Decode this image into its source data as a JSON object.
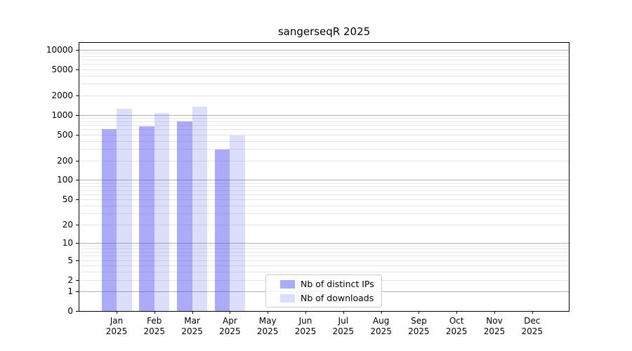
{
  "chart_data": {
    "type": "bar",
    "title": "sangerseqR 2025",
    "categories": [
      {
        "month": "Jan",
        "year": "2025"
      },
      {
        "month": "Feb",
        "year": "2025"
      },
      {
        "month": "Mar",
        "year": "2025"
      },
      {
        "month": "Apr",
        "year": "2025"
      },
      {
        "month": "May",
        "year": "2025"
      },
      {
        "month": "Jun",
        "year": "2025"
      },
      {
        "month": "Jul",
        "year": "2025"
      },
      {
        "month": "Aug",
        "year": "2025"
      },
      {
        "month": "Sep",
        "year": "2025"
      },
      {
        "month": "Oct",
        "year": "2025"
      },
      {
        "month": "Nov",
        "year": "2025"
      },
      {
        "month": "Dec",
        "year": "2025"
      }
    ],
    "series": [
      {
        "name": "Nb of distinct IPs",
        "fill": "rgba(68,68,238,0.45)",
        "solid_equivalent": "#ababf7",
        "values": [
          600,
          660,
          795,
          295,
          null,
          null,
          null,
          null,
          null,
          null,
          null,
          null
        ]
      },
      {
        "name": "Nb of downloads",
        "fill": "rgba(68,68,238,0.18)",
        "solid_equivalent": "#ddddfc",
        "values": [
          1250,
          1080,
          1335,
          480,
          null,
          null,
          null,
          null,
          null,
          null,
          null,
          null
        ]
      }
    ],
    "y_ticks": [
      0,
      1,
      2,
      5,
      10,
      20,
      50,
      100,
      200,
      500,
      1000,
      2000,
      5000,
      10000
    ],
    "y_scale": "pseudo-log log10(1+x)",
    "ylim": [
      0,
      12700
    ],
    "grid": {
      "major_color": "#b0b0b0",
      "minor_color": "#e6e6e6",
      "major_at": [
        1,
        10,
        100,
        1000,
        10000
      ]
    },
    "legend": {
      "position": "lower center"
    }
  }
}
